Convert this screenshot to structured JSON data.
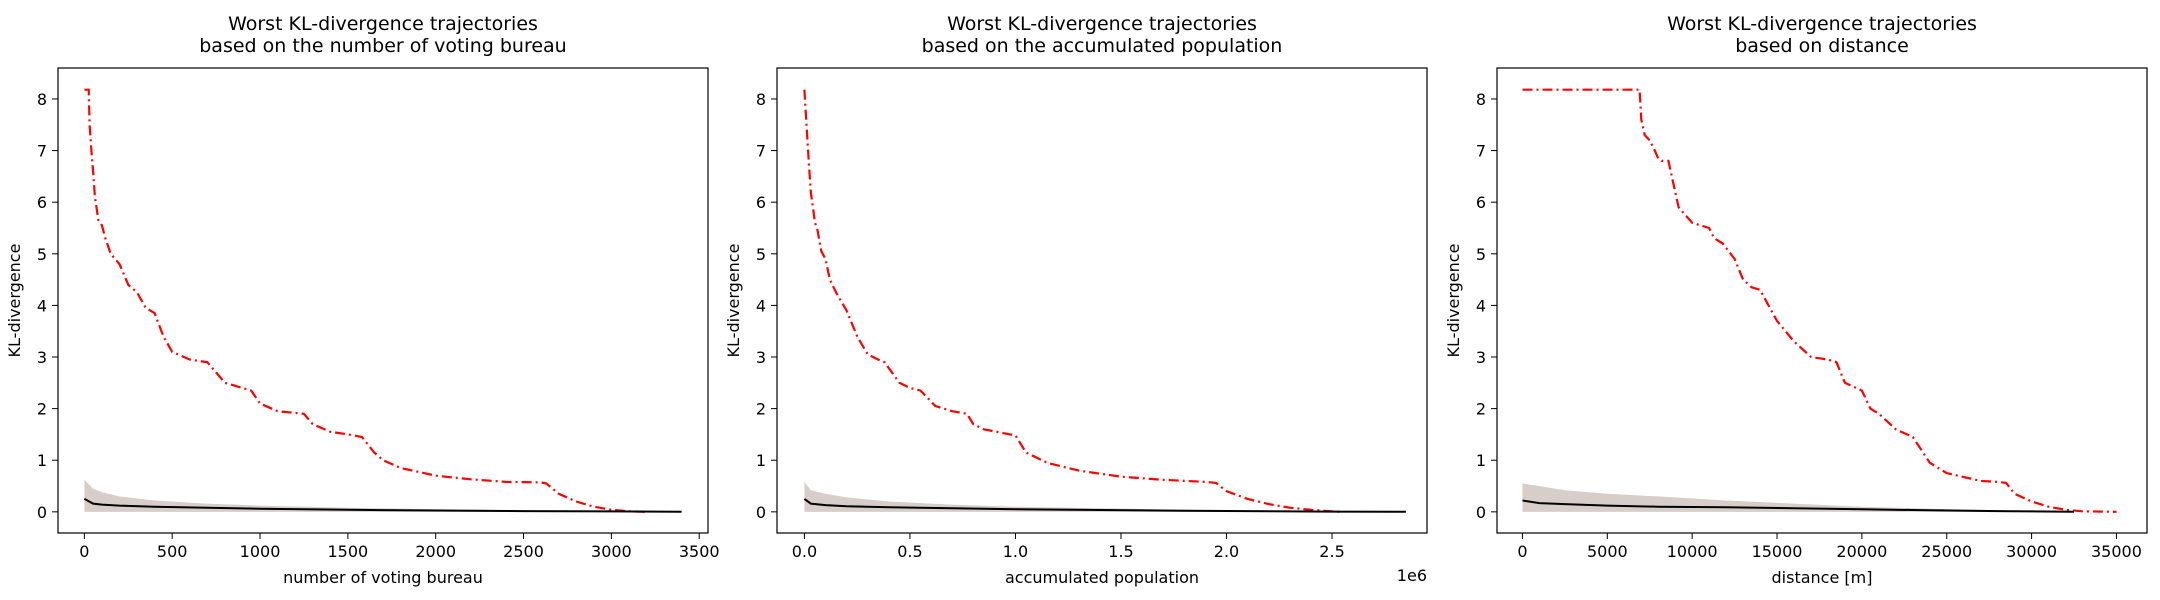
{
  "chart_data": [
    {
      "type": "line",
      "title": "Worst KL-divergence trajectories\nbased on the number of voting bureau",
      "xlabel": "number of voting bureau",
      "ylabel": "KL-divergence",
      "xlim": [
        -150,
        3550
      ],
      "ylim": [
        -0.41,
        8.6
      ],
      "xticks": [
        0,
        500,
        1000,
        1500,
        2000,
        2500,
        3000,
        3500
      ],
      "xtick_labels": [
        "0",
        "500",
        "1000",
        "1500",
        "2000",
        "2500",
        "3000",
        "3500"
      ],
      "yticks": [
        0,
        1,
        2,
        3,
        4,
        5,
        6,
        7,
        8
      ],
      "ytick_labels": [
        "0",
        "1",
        "2",
        "3",
        "4",
        "5",
        "6",
        "7",
        "8"
      ],
      "offset_label": "",
      "grid": false,
      "series": [
        {
          "role": "worst",
          "color": "#ff0000",
          "style": "dash-dot",
          "x": [
            0,
            25,
            30,
            40,
            50,
            60,
            80,
            100,
            120,
            150,
            200,
            250,
            300,
            350,
            400,
            450,
            500,
            600,
            700,
            800,
            900,
            950,
            1000,
            1100,
            1250,
            1300,
            1400,
            1500,
            1580,
            1650,
            1700,
            1800,
            2000,
            2200,
            2400,
            2600,
            2630,
            2700,
            2800,
            2900,
            3000,
            3100,
            3200
          ],
          "y": [
            8.18,
            8.18,
            7.5,
            7.0,
            6.6,
            6.1,
            5.65,
            5.55,
            5.3,
            5.0,
            4.8,
            4.4,
            4.25,
            3.95,
            3.85,
            3.4,
            3.1,
            2.95,
            2.9,
            2.5,
            2.4,
            2.35,
            2.1,
            1.95,
            1.9,
            1.7,
            1.55,
            1.5,
            1.45,
            1.15,
            1.0,
            0.85,
            0.7,
            0.63,
            0.58,
            0.57,
            0.55,
            0.35,
            0.2,
            0.1,
            0.04,
            0.01,
            0.0
          ]
        },
        {
          "role": "typical",
          "color": "#000000",
          "style": "solid",
          "x": [
            0,
            50,
            100,
            200,
            400,
            700,
            1000,
            1500,
            2000,
            2500,
            3000,
            3400
          ],
          "y": [
            0.25,
            0.16,
            0.14,
            0.12,
            0.1,
            0.08,
            0.06,
            0.04,
            0.025,
            0.015,
            0.008,
            0.0
          ]
        }
      ],
      "band": {
        "color": "#c9beb8",
        "x": [
          0,
          50,
          100,
          200,
          400,
          700,
          1000,
          1500,
          2000,
          2500,
          3000,
          3400
        ],
        "upper": [
          0.62,
          0.45,
          0.38,
          0.3,
          0.22,
          0.16,
          0.12,
          0.08,
          0.05,
          0.03,
          0.015,
          0.0
        ]
      }
    },
    {
      "type": "line",
      "title": "Worst KL-divergence trajectories\nbased on the accumulated population",
      "xlabel": "accumulated population",
      "ylabel": "KL-divergence",
      "xlim": [
        -0.13,
        2.95
      ],
      "ylim": [
        -0.41,
        8.6
      ],
      "xticks": [
        0,
        0.5,
        1,
        1.5,
        2,
        2.5
      ],
      "xtick_labels": [
        "0.0",
        "0.5",
        "1.0",
        "1.5",
        "2.0",
        "2.5"
      ],
      "yticks": [
        0,
        1,
        2,
        3,
        4,
        5,
        6,
        7,
        8
      ],
      "ytick_labels": [
        "0",
        "1",
        "2",
        "3",
        "4",
        "5",
        "6",
        "7",
        "8"
      ],
      "offset_label": "1e6",
      "grid": false,
      "series": [
        {
          "role": "worst",
          "color": "#ff0000",
          "style": "dash-dot",
          "x": [
            0.0,
            0.01,
            0.02,
            0.03,
            0.05,
            0.06,
            0.08,
            0.1,
            0.12,
            0.15,
            0.2,
            0.25,
            0.3,
            0.35,
            0.38,
            0.45,
            0.5,
            0.55,
            0.62,
            0.7,
            0.77,
            0.8,
            0.85,
            0.95,
            1.0,
            1.05,
            1.15,
            1.3,
            1.5,
            1.7,
            1.9,
            1.95,
            2.0,
            2.1,
            2.2,
            2.3,
            2.4,
            2.5,
            2.55
          ],
          "y": [
            8.18,
            7.5,
            6.8,
            6.2,
            5.6,
            5.5,
            5.05,
            4.9,
            4.5,
            4.25,
            3.9,
            3.4,
            3.05,
            2.95,
            2.9,
            2.5,
            2.4,
            2.35,
            2.05,
            1.95,
            1.9,
            1.7,
            1.6,
            1.52,
            1.48,
            1.15,
            0.95,
            0.8,
            0.68,
            0.62,
            0.58,
            0.56,
            0.4,
            0.25,
            0.15,
            0.08,
            0.04,
            0.01,
            0.0
          ]
        },
        {
          "role": "typical",
          "color": "#000000",
          "style": "solid",
          "x": [
            0.0,
            0.03,
            0.1,
            0.2,
            0.4,
            0.7,
            1.0,
            1.4,
            1.8,
            2.2,
            2.5,
            2.85
          ],
          "y": [
            0.25,
            0.16,
            0.13,
            0.11,
            0.09,
            0.07,
            0.05,
            0.035,
            0.02,
            0.01,
            0.005,
            0.0
          ]
        }
      ],
      "band": {
        "color": "#c9beb8",
        "x": [
          0.0,
          0.03,
          0.1,
          0.2,
          0.4,
          0.7,
          1.0,
          1.4,
          1.8,
          2.2,
          2.5,
          2.85
        ],
        "upper": [
          0.58,
          0.42,
          0.35,
          0.28,
          0.2,
          0.14,
          0.1,
          0.07,
          0.04,
          0.02,
          0.01,
          0.0
        ]
      }
    },
    {
      "type": "line",
      "title": "Worst KL-divergence trajectories\nbased on distance",
      "xlabel": "distance [m]",
      "ylabel": "KL-divergence",
      "xlim": [
        -1500,
        36800
      ],
      "ylim": [
        -0.41,
        8.6
      ],
      "xticks": [
        0,
        5000,
        10000,
        15000,
        20000,
        25000,
        30000,
        35000
      ],
      "xtick_labels": [
        "0",
        "5000",
        "10000",
        "15000",
        "20000",
        "25000",
        "30000",
        "35000"
      ],
      "yticks": [
        0,
        1,
        2,
        3,
        4,
        5,
        6,
        7,
        8
      ],
      "ytick_labels": [
        "0",
        "1",
        "2",
        "3",
        "4",
        "5",
        "6",
        "7",
        "8"
      ],
      "offset_label": "",
      "grid": false,
      "series": [
        {
          "role": "worst",
          "color": "#ff0000",
          "style": "dash-dot",
          "x": [
            0,
            6900,
            7000,
            7200,
            7500,
            7800,
            8000,
            8200,
            8600,
            9000,
            9200,
            9600,
            10000,
            10500,
            11000,
            11300,
            11800,
            12500,
            13000,
            13500,
            14000,
            14500,
            15000,
            16000,
            17000,
            18000,
            18500,
            19000,
            20000,
            20500,
            21000,
            22000,
            23000,
            24000,
            25000,
            27000,
            28000,
            28500,
            29000,
            30000,
            31000,
            32000,
            33000,
            35000
          ],
          "y": [
            8.18,
            8.18,
            7.6,
            7.3,
            7.2,
            7.0,
            6.85,
            6.8,
            6.8,
            6.2,
            5.9,
            5.75,
            5.6,
            5.55,
            5.5,
            5.3,
            5.2,
            4.9,
            4.5,
            4.35,
            4.3,
            4.0,
            3.7,
            3.3,
            3.0,
            2.95,
            2.9,
            2.5,
            2.35,
            2.0,
            1.9,
            1.6,
            1.45,
            0.95,
            0.75,
            0.6,
            0.58,
            0.56,
            0.35,
            0.2,
            0.1,
            0.04,
            0.01,
            0.0
          ]
        },
        {
          "role": "typical",
          "color": "#000000",
          "style": "solid",
          "x": [
            0,
            1000,
            2500,
            5000,
            8000,
            12000,
            16000,
            20000,
            24000,
            28000,
            30000,
            32500
          ],
          "y": [
            0.22,
            0.17,
            0.15,
            0.12,
            0.1,
            0.09,
            0.07,
            0.05,
            0.03,
            0.015,
            0.008,
            0.0
          ]
        }
      ],
      "band": {
        "color": "#c9beb8",
        "x": [
          0,
          1000,
          2500,
          5000,
          8000,
          12000,
          16000,
          20000,
          24000,
          28000,
          30000,
          32500
        ],
        "upper": [
          0.55,
          0.5,
          0.42,
          0.35,
          0.3,
          0.22,
          0.16,
          0.1,
          0.06,
          0.03,
          0.015,
          0.0
        ]
      }
    }
  ]
}
